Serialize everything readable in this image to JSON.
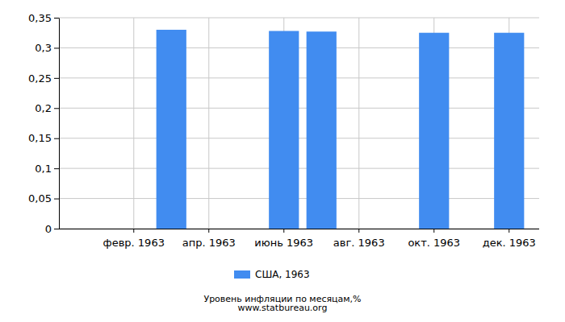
{
  "chart_data": {
    "type": "bar",
    "title": "Уровень инфляции по месяцам,%",
    "subtitle": "www.statbureau.org",
    "categories": [
      null,
      "февр. 1963",
      null,
      "апр. 1963",
      null,
      "июнь 1963",
      null,
      "авг. 1963",
      null,
      "окт. 1963",
      null,
      "дек. 1963"
    ],
    "series": [
      {
        "name": "США, 1963",
        "color": "#418cf0",
        "values": [
          0,
          0,
          0.33,
          0,
          0,
          0.328,
          0.327,
          0,
          0,
          0.325,
          0,
          0.325
        ]
      }
    ],
    "ylim": [
      0,
      0.35
    ],
    "yticks": [
      0,
      {
        "value": 0.05,
        "label": "0,05"
      },
      {
        "value": 0.1,
        "label": "0,1"
      },
      {
        "value": 0.15,
        "label": "0,15"
      },
      {
        "value": 0.2,
        "label": "0,2"
      },
      {
        "value": 0.25,
        "label": "0,25"
      },
      {
        "value": 0.3,
        "label": "0,3"
      },
      {
        "value": 0.35,
        "label": "0,35"
      }
    ],
    "grid": true,
    "legend": "bottom"
  }
}
